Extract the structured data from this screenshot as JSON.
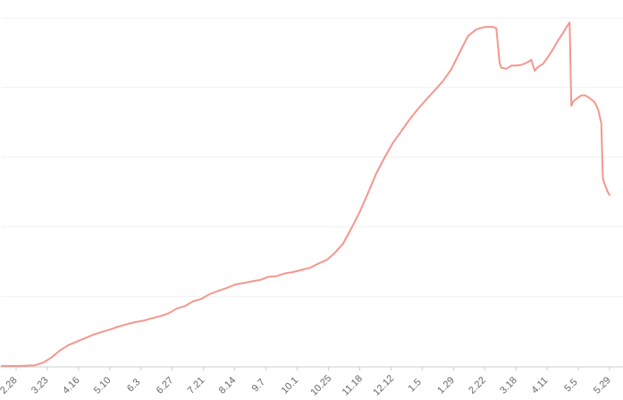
{
  "chart_data": {
    "type": "line",
    "title": "",
    "xlabel": "",
    "ylabel": "",
    "grid": true,
    "ylim": [
      0,
      100
    ],
    "line_color": "#f4978e",
    "grid_color": "#f0f0f0",
    "axis_color": "#cccccc",
    "tick_label_color": "#666666",
    "x_tick_labels": [
      "2.28",
      "3.23",
      "4.16",
      "5.10",
      "6.3",
      "6.27",
      "7.21",
      "8.14",
      "9.7",
      "10.1",
      "10.25",
      "11.18",
      "12.12",
      "1.5",
      "1.29",
      "2.22",
      "3.18",
      "4.11",
      "5.5",
      "5.29"
    ],
    "series": [
      {
        "name": "",
        "points": [
          [
            0,
            0
          ],
          [
            10,
            0
          ],
          [
            20,
            0.2
          ],
          [
            25,
            1
          ],
          [
            30,
            2.5
          ],
          [
            35,
            4.5
          ],
          [
            40,
            6
          ],
          [
            45,
            7
          ],
          [
            50,
            8
          ],
          [
            55,
            9
          ],
          [
            60,
            9.8
          ],
          [
            65,
            10.5
          ],
          [
            70,
            11.3
          ],
          [
            75,
            12
          ],
          [
            80,
            12.6
          ],
          [
            85,
            13
          ],
          [
            90,
            13.7
          ],
          [
            95,
            14.3
          ],
          [
            100,
            15.1
          ],
          [
            105,
            16.5
          ],
          [
            110,
            17.2
          ],
          [
            115,
            18.6
          ],
          [
            120,
            19.3
          ],
          [
            125,
            20.7
          ],
          [
            130,
            21.6
          ],
          [
            135,
            22.4
          ],
          [
            140,
            23.4
          ],
          [
            145,
            23.8
          ],
          [
            150,
            24.3
          ],
          [
            155,
            24.7
          ],
          [
            160,
            25.6
          ],
          [
            165,
            25.8
          ],
          [
            170,
            26.6
          ],
          [
            175,
            27
          ],
          [
            180,
            27.6
          ],
          [
            185,
            28.2
          ],
          [
            190,
            29.4
          ],
          [
            195,
            30.4
          ],
          [
            200,
            32.5
          ],
          [
            205,
            35.2
          ],
          [
            210,
            39.6
          ],
          [
            215,
            44.3
          ],
          [
            220,
            49.8
          ],
          [
            225,
            55.5
          ],
          [
            230,
            60
          ],
          [
            235,
            64.2
          ],
          [
            240,
            67.5
          ],
          [
            245,
            70.9
          ],
          [
            250,
            73.9
          ],
          [
            255,
            76.6
          ],
          [
            260,
            79.2
          ],
          [
            265,
            81.9
          ],
          [
            270,
            85.3
          ],
          [
            275,
            90.1
          ],
          [
            280,
            94.8
          ],
          [
            285,
            96.7
          ],
          [
            290,
            97.4
          ],
          [
            295,
            97.4
          ],
          [
            297,
            97
          ],
          [
            299,
            87
          ],
          [
            300,
            85.7
          ],
          [
            303,
            85.4
          ],
          [
            306,
            86.3
          ],
          [
            309,
            86.3
          ],
          [
            312,
            86.5
          ],
          [
            316,
            87.3
          ],
          [
            318,
            88
          ],
          [
            320,
            84.8
          ],
          [
            322,
            85.9
          ],
          [
            325,
            86.8
          ],
          [
            328,
            88.8
          ],
          [
            331,
            91
          ],
          [
            334,
            93.5
          ],
          [
            337,
            95.6
          ],
          [
            339,
            97.3
          ],
          [
            341,
            98.7
          ],
          [
            342,
            74.7
          ],
          [
            343,
            75.9
          ],
          [
            345,
            76.7
          ],
          [
            348,
            77.7
          ],
          [
            350,
            77.8
          ],
          [
            353,
            77
          ],
          [
            356,
            75.8
          ],
          [
            358,
            73.8
          ],
          [
            360,
            69.8
          ],
          [
            361,
            53.9
          ],
          [
            362,
            52.3
          ],
          [
            364,
            49.9
          ],
          [
            365,
            49.1
          ]
        ]
      }
    ]
  }
}
